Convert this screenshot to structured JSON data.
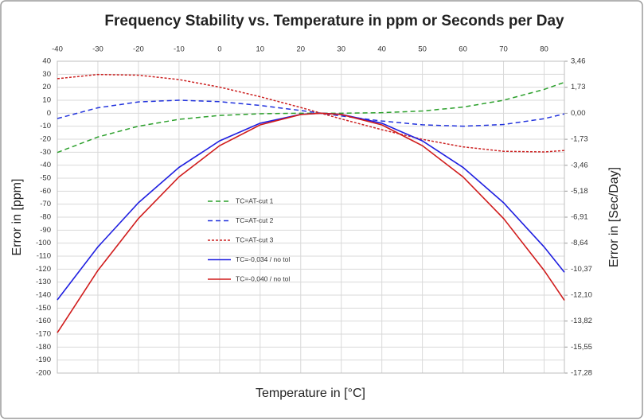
{
  "chart_data": {
    "type": "line",
    "title": "Frequency Stability vs. Temperature in ppm or Seconds per Day",
    "x_label": "Temperature in [°C]",
    "y_label": "Error in [ppm]",
    "y2_label": "Error in [Sec/Day]",
    "x": [
      -40,
      -30,
      -20,
      -10,
      0,
      10,
      20,
      25,
      30,
      40,
      50,
      60,
      70,
      80,
      85
    ],
    "series": [
      {
        "name": "TC=AT-cut 1",
        "color": "#2ca02c",
        "style": "dashed",
        "values": [
          -30.2,
          -18.3,
          -10.0,
          -4.7,
          -1.7,
          -0.4,
          0,
          0,
          0,
          0.4,
          1.7,
          4.7,
          10.0,
          18.3,
          23.8
        ]
      },
      {
        "name": "TC=AT-cut 2",
        "color": "#2233dd",
        "style": "dashed",
        "values": [
          -4.1,
          4.2,
          8.7,
          10.0,
          8.9,
          6.0,
          2.1,
          0,
          -2.1,
          -6.0,
          -8.9,
          -10.0,
          -8.7,
          -4.2,
          -0.5
        ]
      },
      {
        "name": "TC=AT-cut 3",
        "color": "#cc2222",
        "style": "dotted",
        "values": [
          26.6,
          29.8,
          29.3,
          25.9,
          20.1,
          12.7,
          4.4,
          0,
          -4.4,
          -12.7,
          -20.1,
          -25.9,
          -29.3,
          -29.8,
          -28.7
        ]
      },
      {
        "name": "TC=-0,034 / no tol",
        "color": "#1f1fe0",
        "style": "solid",
        "values": [
          -143.7,
          -102.9,
          -68.9,
          -41.7,
          -21.3,
          -7.7,
          -0.9,
          0,
          -0.9,
          -7.7,
          -21.3,
          -41.7,
          -68.9,
          -102.9,
          -122.4
        ]
      },
      {
        "name": "TC=-0,040 / no tol",
        "color": "#d01c1c",
        "style": "solid",
        "values": [
          -169,
          -121,
          -81,
          -49,
          -25,
          -9,
          -1,
          0,
          -1,
          -9,
          -25,
          -49,
          -81,
          -121,
          -144
        ]
      }
    ],
    "xlim": [
      -40,
      85
    ],
    "xticks": [
      -40,
      -30,
      -20,
      -10,
      0,
      10,
      20,
      30,
      40,
      50,
      60,
      70,
      80
    ],
    "ylim": [
      -200,
      40
    ],
    "yticks": [
      -200,
      -190,
      -180,
      -170,
      -160,
      -150,
      -140,
      -130,
      -120,
      -110,
      -100,
      -90,
      -80,
      -70,
      -60,
      -50,
      -40,
      -30,
      -20,
      -10,
      0,
      10,
      20,
      30,
      40
    ],
    "y2lim": [
      -17.28,
      3.46
    ],
    "y2ticks": [
      {
        "value": 3.46,
        "label": "3,46"
      },
      {
        "value": 1.73,
        "label": "1,73"
      },
      {
        "value": 0,
        "label": "0,00"
      },
      {
        "value": -1.73,
        "label": "-1,73"
      },
      {
        "value": -3.46,
        "label": "-3,46"
      },
      {
        "value": -5.18,
        "label": "-5,18"
      },
      {
        "value": -6.91,
        "label": "-6,91"
      },
      {
        "value": -8.64,
        "label": "-8,64"
      },
      {
        "value": -10.37,
        "label": "-10,37"
      },
      {
        "value": -12.1,
        "label": "-12,10"
      },
      {
        "value": -13.82,
        "label": "-13,82"
      },
      {
        "value": -15.55,
        "label": "-15,55"
      },
      {
        "value": -17.28,
        "label": "-17,28"
      }
    ],
    "grid": true
  }
}
